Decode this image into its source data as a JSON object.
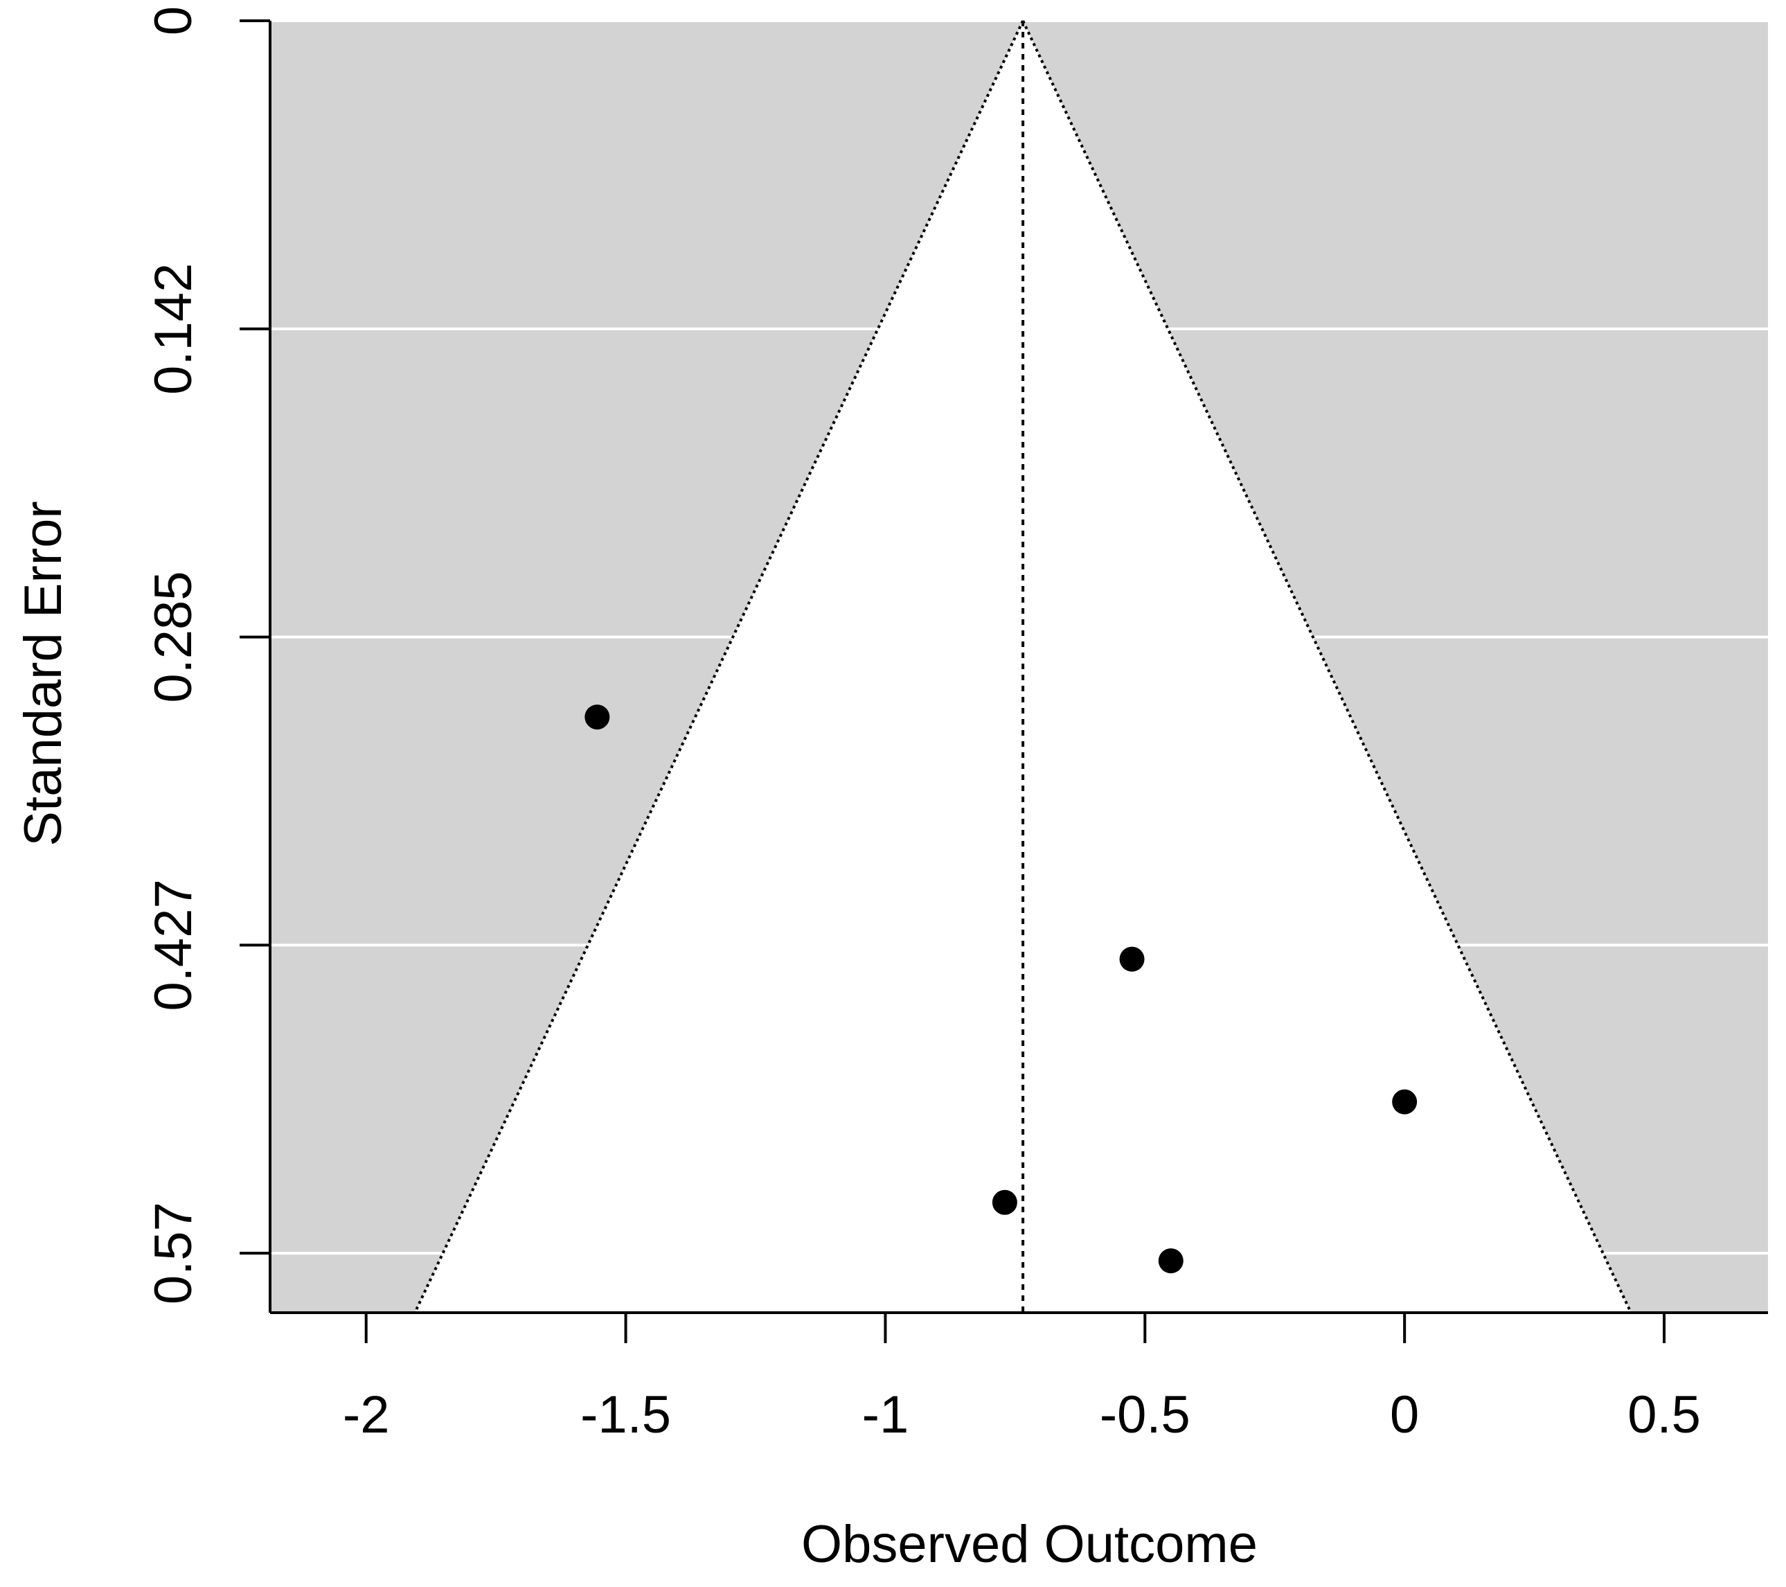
{
  "chart_data": {
    "type": "scatter",
    "subtype": "funnel",
    "title": "",
    "xlabel": "Observed Outcome",
    "ylabel": "Standard Error",
    "xlim": [
      -2.185,
      0.7
    ],
    "ylim": [
      0.0,
      0.5975
    ],
    "y_reversed": true,
    "x_ticks": [
      -2,
      -1.5,
      -1,
      -0.5,
      0,
      0.5
    ],
    "x_tick_labels": [
      "-2",
      "-1.5",
      "-1",
      "-0.5",
      "0",
      "0.5"
    ],
    "y_ticks": [
      0,
      0.1425,
      0.285,
      0.4275,
      0.57
    ],
    "y_tick_labels": [
      "0",
      "0.142",
      "0.285",
      "0.427",
      "0.57"
    ],
    "grid": true,
    "summary_estimate": -0.735,
    "funnel_z": 1.96,
    "points": [
      {
        "x": -1.555,
        "y": 0.322
      },
      {
        "x": -0.525,
        "y": 0.434
      },
      {
        "x": 0.0,
        "y": 0.5
      },
      {
        "x": -0.77,
        "y": 0.5465
      },
      {
        "x": -0.45,
        "y": 0.5735
      }
    ],
    "colors": {
      "background": "#d3d3d3",
      "funnel": "#ffffff",
      "grid": "#ffffff",
      "points": "#000000"
    }
  }
}
